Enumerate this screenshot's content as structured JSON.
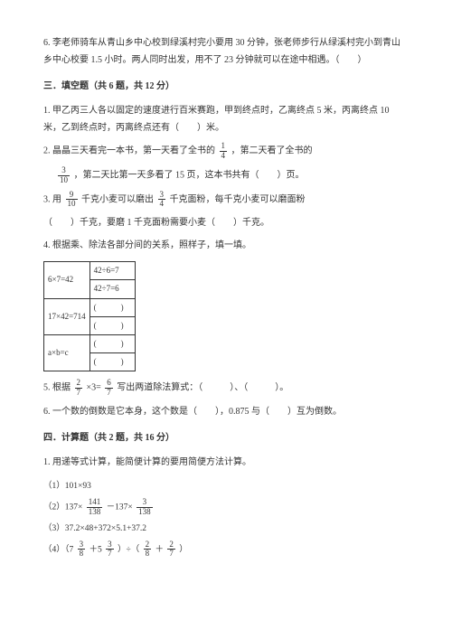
{
  "q6": {
    "text": "6. 李老师骑车从青山乡中心校到绿溪村完小要用 30 分钟，张老师步行从绿溪村完小到青山乡中心校要 1.5 小时。两人同时出发，用不了 23 分钟就可以在途中相遇。（　　）"
  },
  "section3": {
    "title": "三．填空题（共 6 题，共 12 分）",
    "q1_a": "1. 甲乙丙三人各以固定的速度进行百米赛跑，甲到终点时，乙离终点 5 米，丙离终点 10 米，乙到终点时，丙离终点还有（　　）米。",
    "q2_a": "2. 晶晶三天看完一本书，第一天看了全书的",
    "q2_frac1": {
      "num": "1",
      "den": "4"
    },
    "q2_b": "，第二天看了全书的",
    "q2_frac2": {
      "num": "3",
      "den": "10"
    },
    "q2_c": "，第二天比第一天多看了 15 页，这本书共有（　　）页。",
    "q3_a": "3. 用",
    "q3_frac1": {
      "num": "9",
      "den": "10"
    },
    "q3_b": "千克小麦可以磨出",
    "q3_frac2": {
      "num": "3",
      "den": "4"
    },
    "q3_c": "千克面粉，每千克小麦可以磨面粉",
    "q3_d": "（　　）千克，要磨 1 千克面粉需要小麦（　　）千克。",
    "q4": "4. 根据乘、除法各部分间的关系，照样子，填一填。",
    "table": {
      "r1c1": "6×7=42",
      "r1c2": "42÷6=7",
      "r2c2": "42÷7=6",
      "r3c1": "17×42=714",
      "r3c2": "(　　　)",
      "r4c2": "(　　　)",
      "r5c1": "a×b=c",
      "r5c2": "(　　　)",
      "r6c2": "(　　　)"
    },
    "q5_a": "5. 根据",
    "q5_frac1": {
      "num": "2",
      "den": "7"
    },
    "q5_b": "×3=",
    "q5_frac2": {
      "num": "6",
      "den": "7"
    },
    "q5_c": "写出两道除法算式：（　　　）、（　　　）。",
    "q6": "6. 一个数的倒数是它本身，这个数是（　　），0.875 与（　　）互为倒数。"
  },
  "section4": {
    "title": "四．计算题（共 2 题，共 16 分）",
    "q1": "1. 用递等式计算，能简便计算的要用简便方法计算。",
    "items": {
      "i1": "（1）101×93",
      "i2_a": "（2）137×",
      "i2_f1": {
        "num": "141",
        "den": "138"
      },
      "i2_b": "－137×",
      "i2_f2": {
        "num": "3",
        "den": "138"
      },
      "i3": "（3）37.2×48+372×5.1+37.2",
      "i4_a": "（4）（7",
      "i4_f1": {
        "num": "3",
        "den": "8"
      },
      "i4_b": "＋5",
      "i4_f2": {
        "num": "3",
        "den": "7"
      },
      "i4_c": "）÷（",
      "i4_f3": {
        "num": "2",
        "den": "8"
      },
      "i4_d": "＋",
      "i4_f4": {
        "num": "2",
        "den": "7"
      },
      "i4_e": "）"
    }
  }
}
